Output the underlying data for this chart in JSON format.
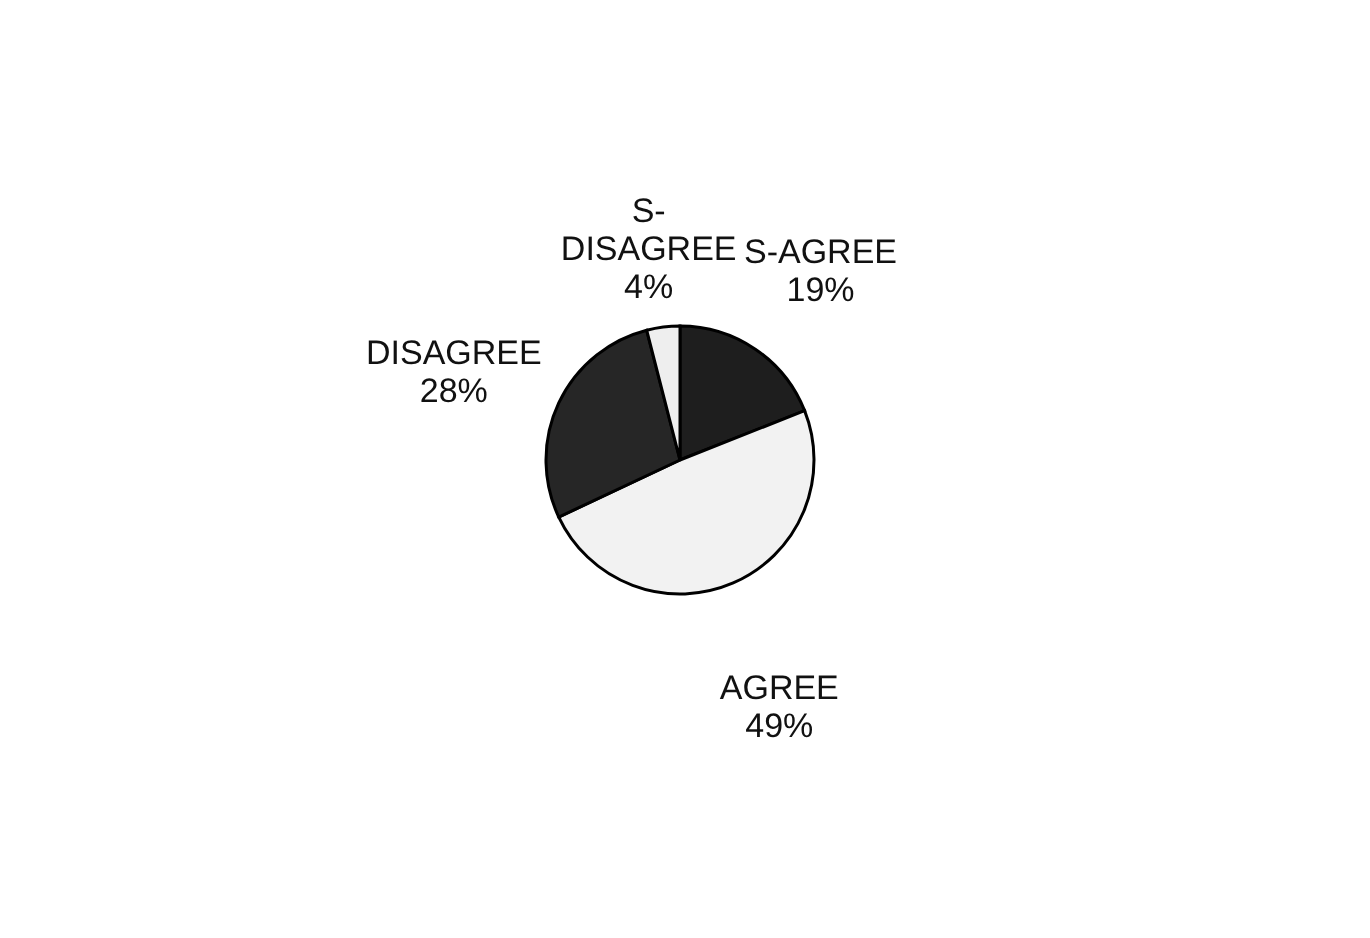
{
  "chart_data": {
    "type": "pie",
    "categories": [
      "S-AGREE",
      "AGREE",
      "DISAGREE",
      "S-\nDISAGREE"
    ],
    "values": [
      19,
      49,
      28,
      4
    ],
    "colors": [
      "#1e1e1e",
      "#f2f2f2",
      "#262626",
      "#eeeeee"
    ],
    "value_labels": [
      "19%",
      "49%",
      "28%",
      "4%"
    ],
    "legend": false
  }
}
